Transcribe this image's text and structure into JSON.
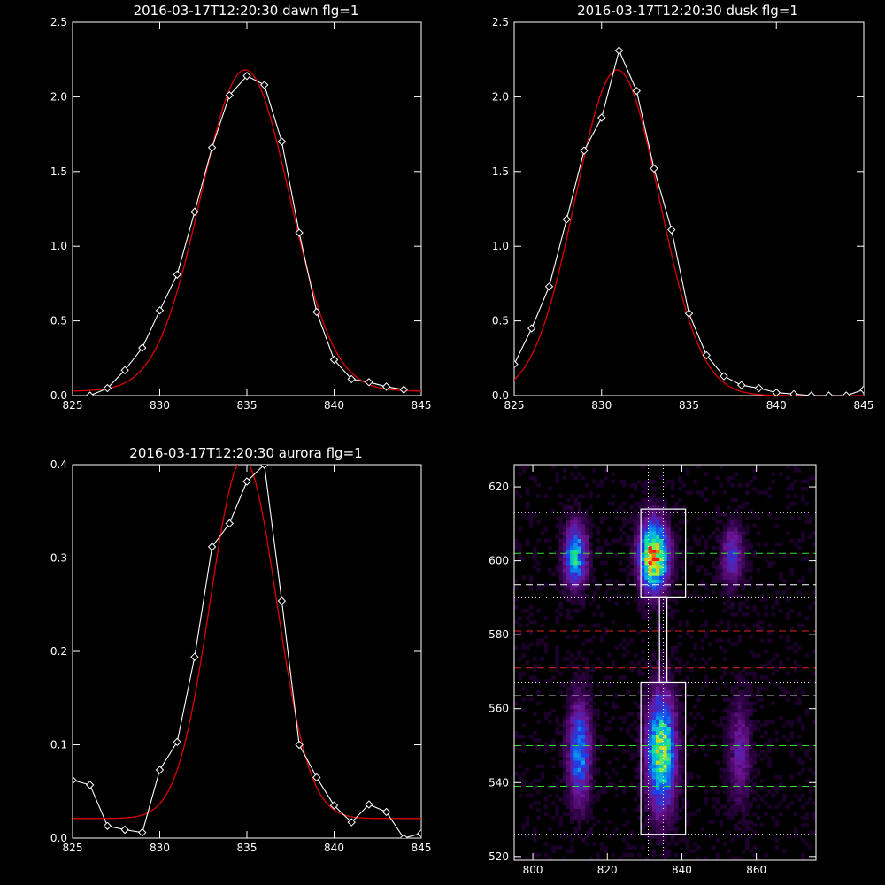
{
  "colors": {
    "observed": "#ffffff",
    "fit": "#dd0000",
    "axis": "#ffffff",
    "background": "#000000"
  },
  "chart_data": [
    {
      "type": "line",
      "title": "2016-03-17T12:20:30 dawn flg=1",
      "xlim": [
        825,
        845
      ],
      "ylim": [
        0,
        2.5
      ],
      "xticks": [
        825,
        830,
        835,
        840,
        845
      ],
      "yticks": [
        0.0,
        0.5,
        1.0,
        1.5,
        2.0,
        2.5
      ],
      "xtick_labels": [
        "825",
        "830",
        "835",
        "840",
        "845"
      ],
      "ytick_labels": [
        "0.0",
        "0.5",
        "1.0",
        "1.5",
        "2.0",
        "2.5"
      ],
      "observed": {
        "x": [
          826,
          827,
          828,
          829,
          830,
          831,
          832,
          833,
          834,
          835,
          836,
          837,
          838,
          839,
          840,
          841,
          842,
          843,
          844
        ],
        "y": [
          0.0,
          0.05,
          0.17,
          0.32,
          0.57,
          0.81,
          1.23,
          1.66,
          2.01,
          2.14,
          2.08,
          1.7,
          1.09,
          0.56,
          0.24,
          0.11,
          0.09,
          0.06,
          0.04
        ]
      },
      "fit": {
        "amplitude": 2.15,
        "center": 834.9,
        "sigma": 2.55,
        "offset": 0.03
      }
    },
    {
      "type": "line",
      "title": "2016-03-17T12:20:30 dusk flg=1",
      "xlim": [
        825,
        845
      ],
      "ylim": [
        0,
        2.5
      ],
      "xticks": [
        825,
        830,
        835,
        840,
        845
      ],
      "yticks": [
        0.0,
        0.5,
        1.0,
        1.5,
        2.0,
        2.5
      ],
      "xtick_labels": [
        "825",
        "830",
        "835",
        "840",
        "845"
      ],
      "ytick_labels": [
        "0.0",
        "0.5",
        "1.0",
        "1.5",
        "2.0",
        "2.5"
      ],
      "observed": {
        "x": [
          825,
          826,
          827,
          828,
          829,
          830,
          831,
          832,
          833,
          834,
          835,
          836,
          837,
          838,
          839,
          840,
          841,
          842,
          843,
          844,
          845
        ],
        "y": [
          0.21,
          0.45,
          0.73,
          1.18,
          1.64,
          1.86,
          2.31,
          2.04,
          1.52,
          1.11,
          0.55,
          0.27,
          0.13,
          0.07,
          0.05,
          0.02,
          0.01,
          0.0,
          0.0,
          0.0,
          0.04
        ]
      },
      "fit": {
        "amplitude": 2.18,
        "center": 830.9,
        "sigma": 2.4,
        "offset": 0.0
      }
    },
    {
      "type": "line",
      "title": "2016-03-17T12:20:30 aurora flg=1",
      "xlim": [
        825,
        845
      ],
      "ylim": [
        0,
        0.4
      ],
      "xticks": [
        825,
        830,
        835,
        840,
        845
      ],
      "yticks": [
        0.0,
        0.1,
        0.2,
        0.3,
        0.4
      ],
      "xtick_labels": [
        "825",
        "830",
        "835",
        "840",
        "845"
      ],
      "ytick_labels": [
        "0.0",
        "0.1",
        "0.2",
        "0.3",
        "0.4"
      ],
      "observed": {
        "x": [
          825,
          826,
          827,
          828,
          829,
          830,
          831,
          832,
          833,
          834,
          835,
          836,
          837,
          838,
          839,
          840,
          841,
          842,
          843,
          844,
          845
        ],
        "y": [
          0.062,
          0.057,
          0.013,
          0.009,
          0.006,
          0.073,
          0.103,
          0.194,
          0.312,
          0.337,
          0.382,
          0.4,
          0.254,
          0.1,
          0.065,
          0.035,
          0.017,
          0.036,
          0.028,
          0.0,
          0.005
        ]
      },
      "fit": {
        "amplitude": 0.385,
        "center": 834.8,
        "sigma": 1.9,
        "offset": 0.021
      }
    },
    {
      "type": "heatmap",
      "title": "",
      "xlim": [
        795,
        876
      ],
      "ylim": [
        519,
        626
      ],
      "xticks": [
        800,
        820,
        840,
        860
      ],
      "yticks": [
        520,
        540,
        560,
        580,
        600,
        620
      ],
      "xtick_labels": [
        "800",
        "820",
        "840",
        "860"
      ],
      "ytick_labels": [
        "520",
        "540",
        "560",
        "580",
        "600",
        "620"
      ],
      "emission_blobs": [
        {
          "x": 811,
          "y": 601,
          "sx": 2.0,
          "sy": 5.5,
          "amp": 0.55
        },
        {
          "x": 812,
          "y": 548,
          "sx": 2.0,
          "sy": 9.0,
          "amp": 0.45
        },
        {
          "x": 832,
          "y": 601,
          "sx": 2.5,
          "sy": 6.0,
          "amp": 0.95
        },
        {
          "x": 834,
          "y": 548,
          "sx": 2.5,
          "sy": 10.0,
          "amp": 0.75
        },
        {
          "x": 853,
          "y": 601,
          "sx": 2.0,
          "sy": 5.5,
          "amp": 0.28
        },
        {
          "x": 855,
          "y": 548,
          "sx": 2.0,
          "sy": 9.0,
          "amp": 0.22
        }
      ],
      "boxes": [
        {
          "x0": 829,
          "x1": 841,
          "y0": 590,
          "y1": 614
        },
        {
          "x0": 829,
          "x1": 841,
          "y0": 526,
          "y1": 567
        },
        {
          "x0": 834,
          "x1": 836,
          "y0": 567,
          "y1": 590
        }
      ],
      "vlines": [
        831,
        835
      ],
      "hlines": [
        {
          "y": 613,
          "style": "dotted",
          "color": "#ffffff"
        },
        {
          "y": 602,
          "style": "dashed",
          "color": "#33dd33"
        },
        {
          "y": 593.5,
          "style": "dashed",
          "color": "#ffffff"
        },
        {
          "y": 590,
          "style": "dotted",
          "color": "#ffffff"
        },
        {
          "y": 581,
          "style": "dashed",
          "color": "#dd2222"
        },
        {
          "y": 571,
          "style": "dashed",
          "color": "#dd2222"
        },
        {
          "y": 567,
          "style": "dotted",
          "color": "#ffffff"
        },
        {
          "y": 563.5,
          "style": "dashed",
          "color": "#ffffff"
        },
        {
          "y": 550,
          "style": "dashed",
          "color": "#33dd33"
        },
        {
          "y": 539,
          "style": "dashed",
          "color": "#33dd33"
        },
        {
          "y": 526,
          "style": "dotted",
          "color": "#ffffff"
        }
      ]
    }
  ]
}
